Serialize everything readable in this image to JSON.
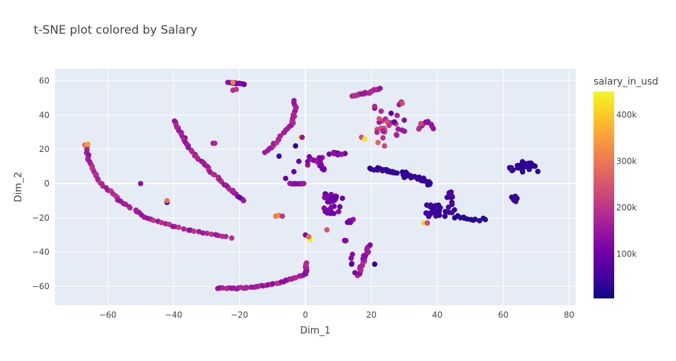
{
  "chart_data": {
    "type": "scatter",
    "title": "t-SNE plot colored by Salary",
    "xlabel": "Dim_1",
    "ylabel": "Dim_2",
    "xlim": [
      -76,
      82
    ],
    "ylim": [
      -71,
      67
    ],
    "xticks": [
      -60,
      -40,
      -20,
      0,
      20,
      40,
      60,
      80
    ],
    "yticks": [
      -60,
      -40,
      -20,
      0,
      20,
      40,
      60
    ],
    "grid": true,
    "background": "#e5ecf6",
    "colorbar": {
      "title": "salary_in_usd",
      "range": [
        5000,
        450000
      ],
      "ticks": [
        100000,
        200000,
        300000,
        400000
      ],
      "tick_labels": [
        "100k",
        "200k",
        "300k",
        "400k"
      ],
      "colorscale": [
        "#0d0887",
        "#46039f",
        "#7201a8",
        "#9c179e",
        "#bd3786",
        "#d8576b",
        "#ed7953",
        "#fb9f3a",
        "#fdca26",
        "#f0f921"
      ]
    },
    "clusters": [
      {
        "kind": "curve",
        "points": [
          [
            -66.5,
            22
          ],
          [
            -65.5,
            12
          ],
          [
            -62,
            0
          ],
          [
            -55,
            -12
          ],
          [
            -48,
            -20
          ],
          [
            -40,
            -25
          ],
          [
            -33,
            -28
          ],
          [
            -27,
            -30
          ],
          [
            -22,
            -32
          ]
        ],
        "n": 60,
        "salary": 170000,
        "jitter": 0.4
      },
      {
        "kind": "curve",
        "points": [
          [
            -40,
            37
          ],
          [
            -38,
            30
          ],
          [
            -35,
            20
          ],
          [
            -30,
            10
          ],
          [
            -26,
            2
          ],
          [
            -22,
            -5
          ],
          [
            -18,
            -11
          ]
        ],
        "n": 45,
        "salary": 165000,
        "jitter": 0.4
      },
      {
        "kind": "curve",
        "points": [
          [
            -12,
            18
          ],
          [
            -8,
            26
          ],
          [
            -4,
            35
          ],
          [
            -3,
            44
          ],
          [
            -3.5,
            49
          ]
        ],
        "n": 30,
        "salary": 170000,
        "jitter": 0.4
      },
      {
        "kind": "curve",
        "points": [
          [
            -27,
            -61
          ],
          [
            -18,
            -61
          ],
          [
            -8,
            -58
          ],
          [
            0,
            -53
          ],
          [
            0.5,
            -46
          ]
        ],
        "n": 45,
        "salary": 165000,
        "jitter": 0.4
      },
      {
        "kind": "curve",
        "points": [
          [
            14,
            51
          ],
          [
            19,
            53
          ],
          [
            23,
            56
          ]
        ],
        "n": 22,
        "salary": 175000,
        "jitter": 0.4
      },
      {
        "kind": "curve",
        "points": [
          [
            16,
            -54
          ],
          [
            18,
            -43
          ],
          [
            19,
            -37
          ],
          [
            20,
            -35
          ]
        ],
        "n": 22,
        "salary": 155000,
        "jitter": 0.5
      },
      {
        "kind": "curve",
        "points": [
          [
            20,
            9
          ],
          [
            28,
            6
          ],
          [
            36,
            2
          ],
          [
            38,
            -1
          ]
        ],
        "n": 45,
        "salary": 40000,
        "jitter": 1.3
      },
      {
        "kind": "curve",
        "points": [
          [
            -23.5,
            59
          ],
          [
            -18.5,
            58
          ]
        ],
        "n": 10,
        "salary": 120000,
        "jitter": 0.3
      },
      {
        "kind": "curve",
        "points": [
          [
            -5,
            0
          ],
          [
            0,
            0
          ]
        ],
        "n": 10,
        "salary": 135000,
        "jitter": 0.2
      },
      {
        "kind": "curve",
        "points": [
          [
            34,
            31
          ],
          [
            37,
            37
          ],
          [
            39,
            31
          ]
        ],
        "n": 10,
        "salary": 155000,
        "jitter": 0.5
      },
      {
        "kind": "curve",
        "points": [
          [
            45,
            -19
          ],
          [
            52,
            -21
          ],
          [
            55,
            -20
          ]
        ],
        "n": 12,
        "salary": 30000,
        "jitter": 1.0
      },
      {
        "kind": "blob",
        "center": [
          8,
          -8
        ],
        "spread": [
          3,
          3
        ],
        "n": 20,
        "salary": 100000
      },
      {
        "kind": "blob",
        "center": [
          7.5,
          -16
        ],
        "spread": [
          2.5,
          3
        ],
        "n": 14,
        "salary": 105000
      },
      {
        "kind": "blob",
        "center": [
          13.5,
          -22
        ],
        "spread": [
          1,
          1
        ],
        "n": 6,
        "salary": 130000
      },
      {
        "kind": "blob",
        "center": [
          9.5,
          17.5
        ],
        "spread": [
          2.5,
          0.7
        ],
        "n": 10,
        "salary": 120000
      },
      {
        "kind": "blob",
        "center": [
          5.5,
          8.5
        ],
        "spread": [
          1,
          0.8
        ],
        "n": 6,
        "salary": 110000
      },
      {
        "kind": "blob",
        "center": [
          3,
          13
        ],
        "spread": [
          3.5,
          4
        ],
        "n": 14,
        "salary": 145000
      },
      {
        "kind": "blob",
        "center": [
          25,
          35
        ],
        "spread": [
          4,
          8
        ],
        "n": 24,
        "salary": 200000
      },
      {
        "kind": "blob",
        "center": [
          40,
          -16
        ],
        "spread": [
          5,
          5
        ],
        "n": 32,
        "salary": 50000
      },
      {
        "kind": "blob",
        "center": [
          67,
          10
        ],
        "spread": [
          4.5,
          3
        ],
        "n": 35,
        "salary": 35000
      },
      {
        "kind": "blob",
        "center": [
          63.5,
          -9
        ],
        "spread": [
          1.3,
          1.5
        ],
        "n": 10,
        "salary": 40000
      },
      {
        "kind": "blob",
        "center": [
          29,
          47
        ],
        "spread": [
          1,
          1.5
        ],
        "n": 5,
        "salary": 190000
      },
      {
        "kind": "blob",
        "center": [
          44,
          -6
        ],
        "spread": [
          1,
          2
        ],
        "n": 6,
        "salary": 60000
      },
      {
        "kind": "blob",
        "center": [
          14,
          -44
        ],
        "spread": [
          0.5,
          3
        ],
        "n": 3,
        "salary": 115000
      },
      {
        "kind": "blob",
        "center": [
          12,
          -33
        ],
        "spread": [
          0.5,
          0.4
        ],
        "n": 3,
        "salary": 130000
      }
    ],
    "points": [
      [
        -67,
        22.5,
        300000
      ],
      [
        -66,
        23,
        350000
      ],
      [
        -50,
        0,
        140000
      ],
      [
        -42,
        -11,
        60000
      ],
      [
        -42,
        -10,
        290000
      ],
      [
        -28,
        23.5,
        160000
      ],
      [
        -27.5,
        23.5,
        180000
      ],
      [
        -22,
        54.5,
        190000
      ],
      [
        -22,
        59,
        320000
      ],
      [
        -21,
        55,
        200000
      ],
      [
        -22,
        -4,
        170000
      ],
      [
        -20,
        -8,
        80000
      ],
      [
        -9,
        -19,
        300000
      ],
      [
        -8,
        -18.5,
        320000
      ],
      [
        -7,
        -19,
        200000
      ],
      [
        -3,
        22,
        40000
      ],
      [
        -1.5,
        27,
        430000
      ],
      [
        -1,
        27,
        150000
      ],
      [
        -2,
        13,
        95000
      ],
      [
        -8,
        16,
        50000
      ],
      [
        -6,
        3,
        90000
      ],
      [
        -3.5,
        7,
        90000
      ],
      [
        0,
        -30,
        120000
      ],
      [
        1.5,
        -32.5,
        440000
      ],
      [
        1,
        -31,
        280000
      ],
      [
        6.5,
        -27,
        250000
      ],
      [
        15,
        -52,
        120000
      ],
      [
        14,
        -47,
        70000
      ],
      [
        21,
        -47,
        40000
      ],
      [
        17,
        27,
        240000
      ],
      [
        18,
        26,
        430000
      ],
      [
        24,
        22,
        230000
      ],
      [
        21,
        44,
        130000
      ],
      [
        21,
        45,
        180000
      ],
      [
        22,
        24,
        270000
      ],
      [
        26,
        41,
        80000
      ],
      [
        27,
        36,
        90000
      ],
      [
        30,
        37,
        130000
      ],
      [
        35,
        35,
        230000
      ],
      [
        36,
        -23,
        400000
      ],
      [
        37,
        -23,
        230000
      ],
      [
        43,
        -8,
        40000
      ],
      [
        44,
        -8,
        60000
      ],
      [
        62,
        9,
        45000
      ],
      [
        63,
        8,
        50000
      ]
    ]
  }
}
